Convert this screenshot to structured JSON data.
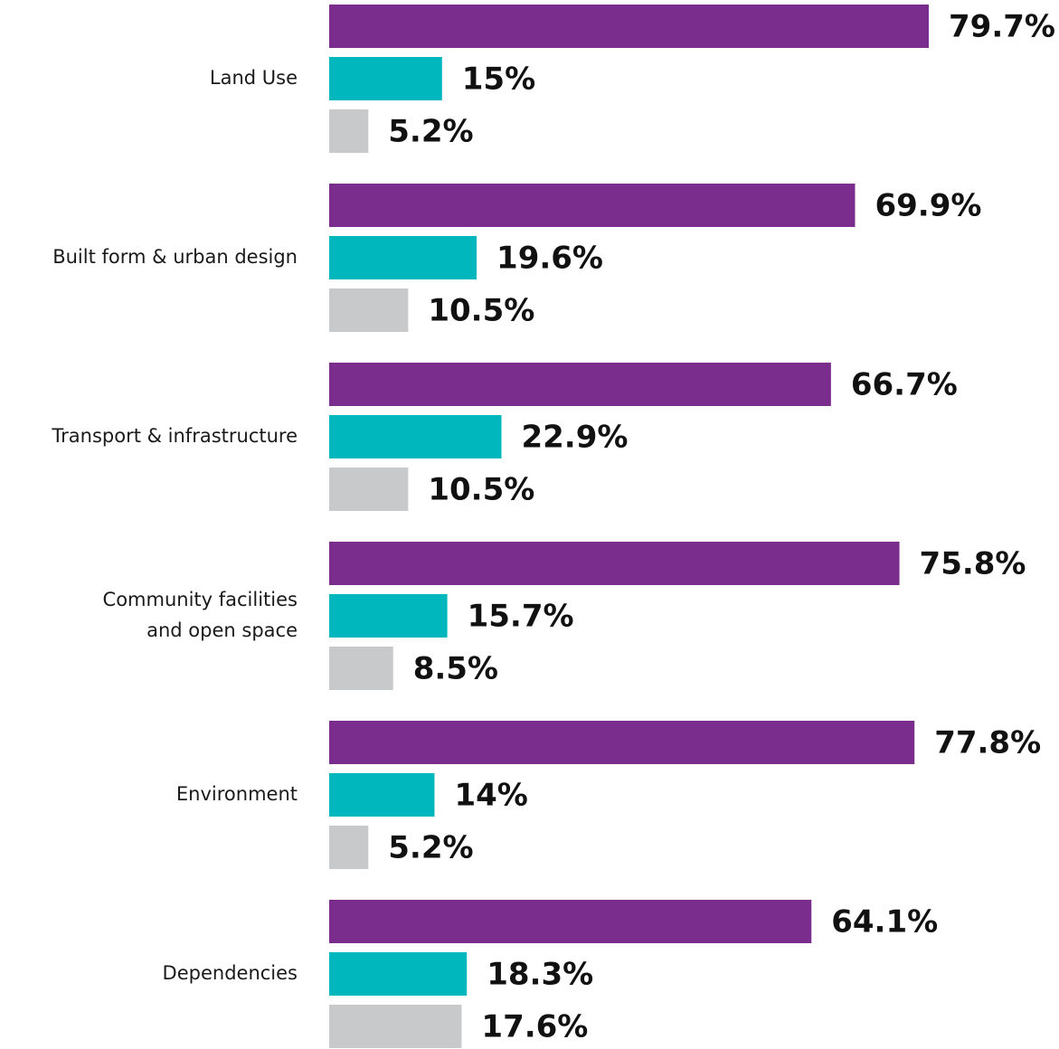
{
  "chart_data": {
    "type": "bar",
    "orientation": "horizontal",
    "categories": [
      [
        "Land Use"
      ],
      [
        "Built form & urban design"
      ],
      [
        "Transport & infrastructure"
      ],
      [
        "Community facilities",
        "and open space"
      ],
      [
        "Environment"
      ],
      [
        "Dependencies"
      ]
    ],
    "series": [
      {
        "color": "#7b2d8e",
        "values": [
          79.7,
          69.9,
          66.7,
          75.8,
          77.8,
          64.1
        ],
        "labels": [
          "79.7%",
          "69.9%",
          "66.7%",
          "75.8%",
          "77.8%",
          "64.1%"
        ]
      },
      {
        "color": "#00b7bd",
        "values": [
          15,
          19.6,
          22.9,
          15.7,
          14,
          18.3
        ],
        "labels": [
          "15%",
          "19.6%",
          "22.9%",
          "15.7%",
          "14%",
          "18.3%"
        ]
      },
      {
        "color": "#c8c9cb",
        "values": [
          5.2,
          10.5,
          10.5,
          8.5,
          5.2,
          17.6
        ],
        "labels": [
          "5.2%",
          "10.5%",
          "10.5%",
          "8.5%",
          "5.2%",
          "17.6%"
        ]
      }
    ],
    "xlim": [
      0,
      100
    ],
    "grid": false,
    "legend": "none",
    "title": "",
    "xlabel": "",
    "ylabel": ""
  }
}
